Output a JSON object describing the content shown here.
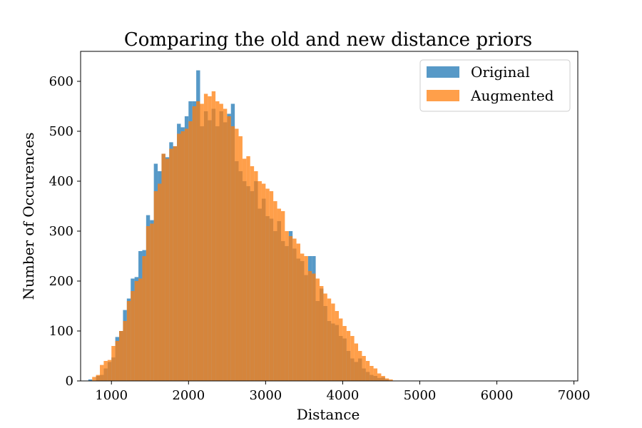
{
  "chart_data": {
    "type": "bar",
    "title": "Comparing the old and new distance priors",
    "xlabel": "Distance",
    "ylabel": "Number of Occurences",
    "xlim": [
      600,
      7050
    ],
    "ylim": [
      0,
      660
    ],
    "xticks": [
      1000,
      2000,
      3000,
      4000,
      5000,
      6000,
      7000
    ],
    "yticks": [
      0,
      100,
      200,
      300,
      400,
      500,
      600
    ],
    "grid": false,
    "legend_position": "top-right",
    "bin_width": 50,
    "series": [
      {
        "name": "Original",
        "color": "#1f77b4",
        "opacity": 0.75,
        "bin_start": 700,
        "values": [
          3,
          0,
          10,
          12,
          25,
          38,
          47,
          88,
          100,
          142,
          165,
          205,
          208,
          260,
          262,
          332,
          322,
          435,
          420,
          455,
          448,
          478,
          470,
          515,
          508,
          530,
          560,
          560,
          622,
          510,
          540,
          522,
          545,
          510,
          540,
          518,
          535,
          555,
          440,
          420,
          400,
          390,
          380,
          400,
          345,
          365,
          330,
          325,
          300,
          320,
          280,
          270,
          300,
          265,
          245,
          240,
          212,
          250,
          250,
          160,
          185,
          150,
          120,
          115,
          112,
          90,
          85,
          60,
          45,
          38,
          45,
          25,
          18,
          12,
          10,
          6,
          7,
          3
        ]
      },
      {
        "name": "Augmented",
        "color": "#ff7f0e",
        "opacity": 0.75,
        "bin_start": 750,
        "values": [
          8,
          12,
          32,
          40,
          42,
          70,
          80,
          100,
          120,
          160,
          180,
          200,
          205,
          250,
          310,
          315,
          380,
          395,
          455,
          445,
          465,
          470,
          495,
          500,
          505,
          520,
          550,
          560,
          555,
          575,
          570,
          580,
          560,
          555,
          545,
          530,
          510,
          505,
          490,
          445,
          450,
          430,
          420,
          400,
          395,
          385,
          380,
          360,
          345,
          340,
          300,
          290,
          285,
          275,
          255,
          250,
          220,
          215,
          205,
          190,
          175,
          165,
          155,
          140,
          125,
          110,
          100,
          90,
          75,
          60,
          50,
          40,
          30,
          25,
          15,
          10,
          5,
          3
        ]
      }
    ]
  }
}
